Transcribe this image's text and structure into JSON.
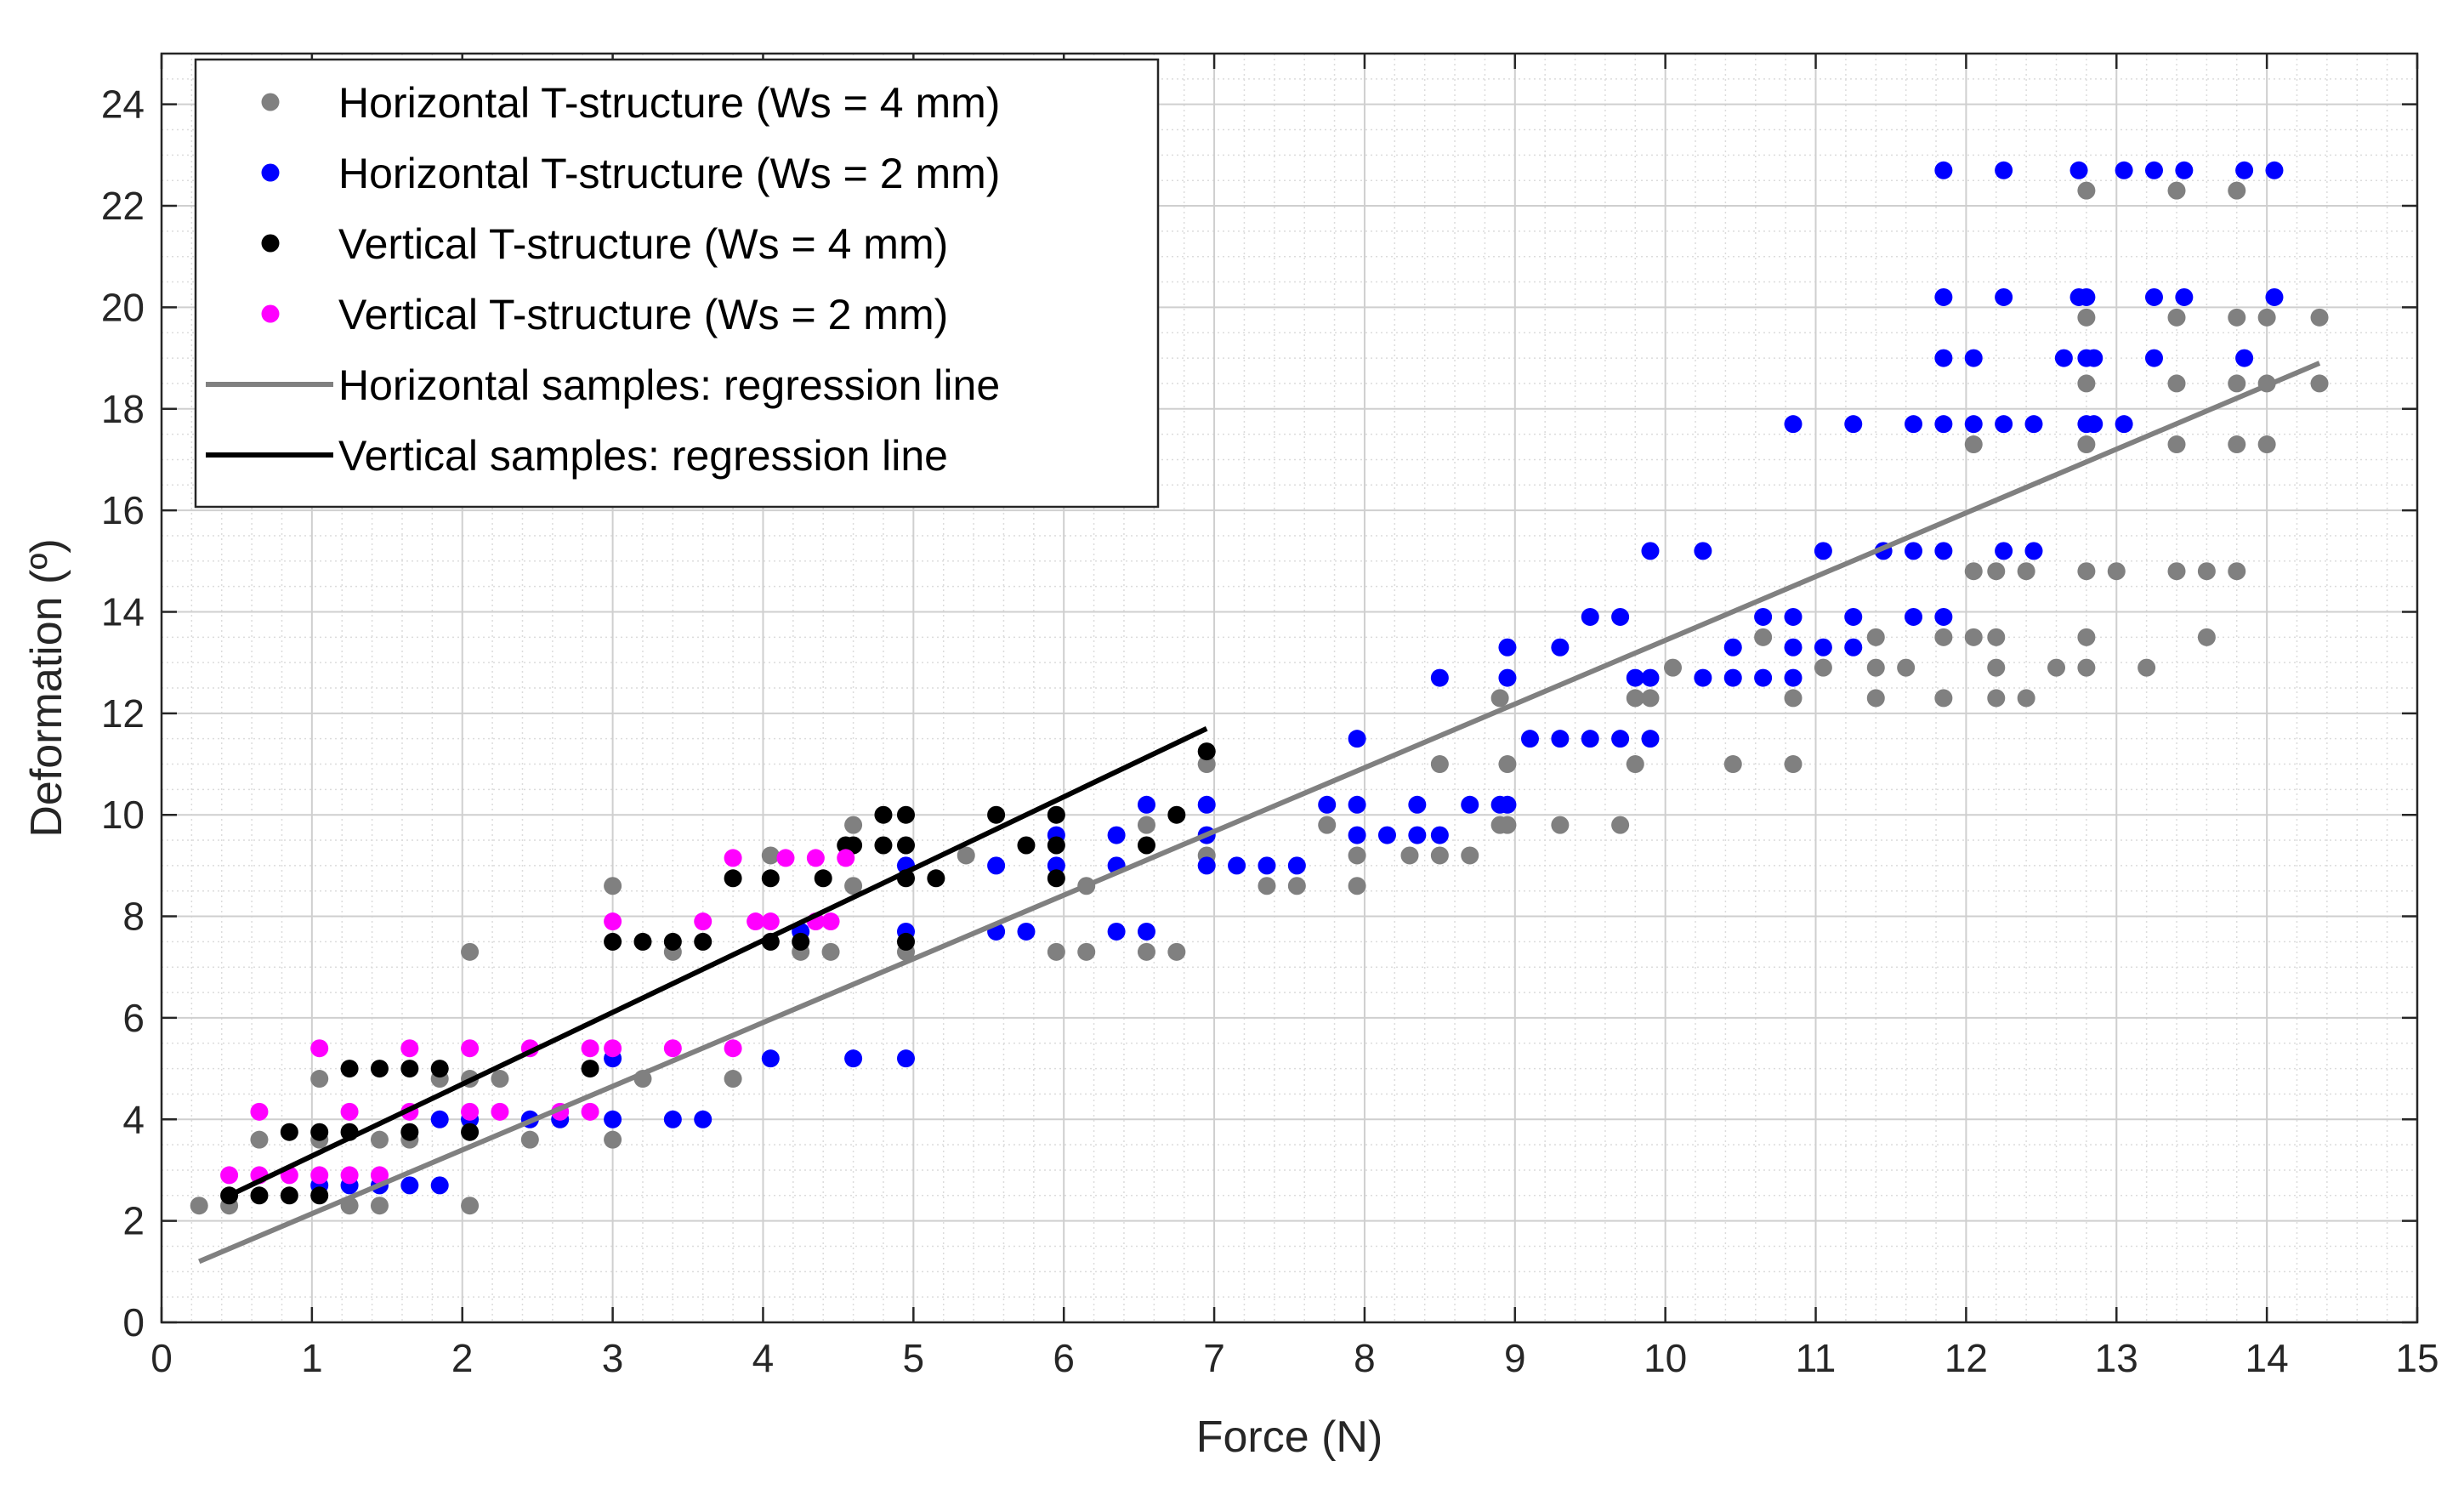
{
  "chart_data": {
    "type": "scatter",
    "title": "",
    "xlabel": "Force (N)",
    "ylabel": "Deformation (º)",
    "xlim": [
      0,
      15
    ],
    "ylim": [
      0,
      25
    ],
    "xticks": [
      0,
      1,
      2,
      3,
      4,
      5,
      6,
      7,
      8,
      9,
      10,
      11,
      12,
      13,
      14,
      15
    ],
    "yticks": [
      0,
      2,
      4,
      6,
      8,
      10,
      12,
      14,
      16,
      18,
      20,
      22,
      24
    ],
    "grid": true,
    "minor_grid": true,
    "legend_position": "top-left",
    "series": [
      {
        "name": "Horizontal T-structure (Ws = 4 mm)",
        "kind": "scatter",
        "color": "#808080",
        "points": [
          [
            0.25,
            2.3
          ],
          [
            0.45,
            2.3
          ],
          [
            0.65,
            3.6
          ],
          [
            1.05,
            4.8
          ],
          [
            1.05,
            3.6
          ],
          [
            1.25,
            2.3
          ],
          [
            1.45,
            2.3
          ],
          [
            1.45,
            3.6
          ],
          [
            1.65,
            3.6
          ],
          [
            1.85,
            4.8
          ],
          [
            2.05,
            7.3
          ],
          [
            2.05,
            4.8
          ],
          [
            2.05,
            2.3
          ],
          [
            2.25,
            4.8
          ],
          [
            2.45,
            3.6
          ],
          [
            3.0,
            8.6
          ],
          [
            3.0,
            3.6
          ],
          [
            3.2,
            4.8
          ],
          [
            3.4,
            7.3
          ],
          [
            3.8,
            4.8
          ],
          [
            4.05,
            9.2
          ],
          [
            4.25,
            7.3
          ],
          [
            4.45,
            7.3
          ],
          [
            4.6,
            9.8
          ],
          [
            4.6,
            8.6
          ],
          [
            4.95,
            7.3
          ],
          [
            5.35,
            9.2
          ],
          [
            5.95,
            7.3
          ],
          [
            6.15,
            8.6
          ],
          [
            6.15,
            7.3
          ],
          [
            6.55,
            9.8
          ],
          [
            6.55,
            7.3
          ],
          [
            6.75,
            7.3
          ],
          [
            6.95,
            11.0
          ],
          [
            6.95,
            9.2
          ],
          [
            7.35,
            8.6
          ],
          [
            7.55,
            8.6
          ],
          [
            7.75,
            9.8
          ],
          [
            7.95,
            9.2
          ],
          [
            7.95,
            8.6
          ],
          [
            8.3,
            9.2
          ],
          [
            8.5,
            11.0
          ],
          [
            8.5,
            9.2
          ],
          [
            8.7,
            9.2
          ],
          [
            8.9,
            12.3
          ],
          [
            8.9,
            9.8
          ],
          [
            8.95,
            11.0
          ],
          [
            8.95,
            9.8
          ],
          [
            9.3,
            9.8
          ],
          [
            9.7,
            9.8
          ],
          [
            9.8,
            12.3
          ],
          [
            9.8,
            11.0
          ],
          [
            9.9,
            12.3
          ],
          [
            10.05,
            12.9
          ],
          [
            10.45,
            11.0
          ],
          [
            10.65,
            13.5
          ],
          [
            10.85,
            12.3
          ],
          [
            10.85,
            11.0
          ],
          [
            11.05,
            12.9
          ],
          [
            11.4,
            13.5
          ],
          [
            11.4,
            12.9
          ],
          [
            11.4,
            12.3
          ],
          [
            11.6,
            12.9
          ],
          [
            11.85,
            13.5
          ],
          [
            11.85,
            12.3
          ],
          [
            12.05,
            17.3
          ],
          [
            12.05,
            14.8
          ],
          [
            12.05,
            13.5
          ],
          [
            12.2,
            14.8
          ],
          [
            12.2,
            13.5
          ],
          [
            12.2,
            12.9
          ],
          [
            12.2,
            12.3
          ],
          [
            12.4,
            14.8
          ],
          [
            12.4,
            12.3
          ],
          [
            12.6,
            12.9
          ],
          [
            12.8,
            22.3
          ],
          [
            12.8,
            19.8
          ],
          [
            12.8,
            18.5
          ],
          [
            12.8,
            17.3
          ],
          [
            12.8,
            14.8
          ],
          [
            12.8,
            13.5
          ],
          [
            12.8,
            12.9
          ],
          [
            13.0,
            14.8
          ],
          [
            13.2,
            12.9
          ],
          [
            13.4,
            22.3
          ],
          [
            13.4,
            19.8
          ],
          [
            13.4,
            18.5
          ],
          [
            13.4,
            17.3
          ],
          [
            13.4,
            14.8
          ],
          [
            13.6,
            14.8
          ],
          [
            13.6,
            13.5
          ],
          [
            13.8,
            22.3
          ],
          [
            13.8,
            19.8
          ],
          [
            13.8,
            18.5
          ],
          [
            13.8,
            17.3
          ],
          [
            13.8,
            14.8
          ],
          [
            14.0,
            19.8
          ],
          [
            14.0,
            18.5
          ],
          [
            14.0,
            17.3
          ],
          [
            14.35,
            19.8
          ],
          [
            14.35,
            18.5
          ]
        ]
      },
      {
        "name": "Horizontal T-structure (Ws = 2 mm)",
        "kind": "scatter",
        "color": "#0000ff",
        "points": [
          [
            1.05,
            2.7
          ],
          [
            1.25,
            2.7
          ],
          [
            1.45,
            2.7
          ],
          [
            1.65,
            2.7
          ],
          [
            1.85,
            2.7
          ],
          [
            1.85,
            4.0
          ],
          [
            2.05,
            4.0
          ],
          [
            2.45,
            4.0
          ],
          [
            2.65,
            4.0
          ],
          [
            3.0,
            5.2
          ],
          [
            3.0,
            4.0
          ],
          [
            3.4,
            4.0
          ],
          [
            3.6,
            4.0
          ],
          [
            4.05,
            5.2
          ],
          [
            4.25,
            7.7
          ],
          [
            4.6,
            5.2
          ],
          [
            4.95,
            9.0
          ],
          [
            4.95,
            7.7
          ],
          [
            4.95,
            5.2
          ],
          [
            5.55,
            9.0
          ],
          [
            5.55,
            7.7
          ],
          [
            5.75,
            7.7
          ],
          [
            5.95,
            9.6
          ],
          [
            5.95,
            9.0
          ],
          [
            6.35,
            9.6
          ],
          [
            6.35,
            9.0
          ],
          [
            6.35,
            7.7
          ],
          [
            6.55,
            10.2
          ],
          [
            6.55,
            7.7
          ],
          [
            6.95,
            10.2
          ],
          [
            6.95,
            9.6
          ],
          [
            6.95,
            9.0
          ],
          [
            7.15,
            9.0
          ],
          [
            7.35,
            9.0
          ],
          [
            7.55,
            9.0
          ],
          [
            7.75,
            10.2
          ],
          [
            7.95,
            11.5
          ],
          [
            7.95,
            10.2
          ],
          [
            7.95,
            9.6
          ],
          [
            8.15,
            9.6
          ],
          [
            8.35,
            10.2
          ],
          [
            8.35,
            9.6
          ],
          [
            8.5,
            12.7
          ],
          [
            8.5,
            9.6
          ],
          [
            8.7,
            10.2
          ],
          [
            8.9,
            10.2
          ],
          [
            8.95,
            13.3
          ],
          [
            8.95,
            12.7
          ],
          [
            8.95,
            10.2
          ],
          [
            9.1,
            11.5
          ],
          [
            9.3,
            13.3
          ],
          [
            9.3,
            11.5
          ],
          [
            9.5,
            13.9
          ],
          [
            9.5,
            11.5
          ],
          [
            9.7,
            13.9
          ],
          [
            9.7,
            11.5
          ],
          [
            9.8,
            12.7
          ],
          [
            9.9,
            15.2
          ],
          [
            9.9,
            12.7
          ],
          [
            9.9,
            11.5
          ],
          [
            10.25,
            15.2
          ],
          [
            10.25,
            12.7
          ],
          [
            10.45,
            13.3
          ],
          [
            10.45,
            12.7
          ],
          [
            10.65,
            13.9
          ],
          [
            10.65,
            12.7
          ],
          [
            10.85,
            17.7
          ],
          [
            10.85,
            13.9
          ],
          [
            10.85,
            13.3
          ],
          [
            10.85,
            12.7
          ],
          [
            11.05,
            15.2
          ],
          [
            11.05,
            13.3
          ],
          [
            11.25,
            17.7
          ],
          [
            11.25,
            13.9
          ],
          [
            11.25,
            13.3
          ],
          [
            11.45,
            15.2
          ],
          [
            11.65,
            17.7
          ],
          [
            11.65,
            15.2
          ],
          [
            11.65,
            13.9
          ],
          [
            11.85,
            22.7
          ],
          [
            11.85,
            20.2
          ],
          [
            11.85,
            19.0
          ],
          [
            11.85,
            17.7
          ],
          [
            11.85,
            15.2
          ],
          [
            11.85,
            13.9
          ],
          [
            12.05,
            19.0
          ],
          [
            12.05,
            17.7
          ],
          [
            12.25,
            22.7
          ],
          [
            12.25,
            20.2
          ],
          [
            12.25,
            17.7
          ],
          [
            12.25,
            15.2
          ],
          [
            12.45,
            17.7
          ],
          [
            12.45,
            15.2
          ],
          [
            12.65,
            19.0
          ],
          [
            12.75,
            22.7
          ],
          [
            12.75,
            20.2
          ],
          [
            12.8,
            20.2
          ],
          [
            12.8,
            19.0
          ],
          [
            12.8,
            17.7
          ],
          [
            12.85,
            19.0
          ],
          [
            12.85,
            17.7
          ],
          [
            13.05,
            22.7
          ],
          [
            13.05,
            17.7
          ],
          [
            13.25,
            22.7
          ],
          [
            13.25,
            20.2
          ],
          [
            13.25,
            19.0
          ],
          [
            13.45,
            22.7
          ],
          [
            13.45,
            20.2
          ],
          [
            13.85,
            22.7
          ],
          [
            13.85,
            19.0
          ],
          [
            14.05,
            22.7
          ],
          [
            14.05,
            20.2
          ]
        ]
      },
      {
        "name": "Vertical T-structure (Ws = 4 mm)",
        "kind": "scatter",
        "color": "#000000",
        "points": [
          [
            0.45,
            2.5
          ],
          [
            0.65,
            2.5
          ],
          [
            0.85,
            2.5
          ],
          [
            0.85,
            3.75
          ],
          [
            1.05,
            2.5
          ],
          [
            1.05,
            3.75
          ],
          [
            1.25,
            3.75
          ],
          [
            1.25,
            5.0
          ],
          [
            1.45,
            5.0
          ],
          [
            1.65,
            3.75
          ],
          [
            1.65,
            5.0
          ],
          [
            1.85,
            5.0
          ],
          [
            2.05,
            3.75
          ],
          [
            2.85,
            5.0
          ],
          [
            3.0,
            7.5
          ],
          [
            3.2,
            7.5
          ],
          [
            3.4,
            7.5
          ],
          [
            3.6,
            7.5
          ],
          [
            3.8,
            8.75
          ],
          [
            4.05,
            8.75
          ],
          [
            4.05,
            7.5
          ],
          [
            4.25,
            7.5
          ],
          [
            4.4,
            8.75
          ],
          [
            4.55,
            9.4
          ],
          [
            4.6,
            9.4
          ],
          [
            4.8,
            10.0
          ],
          [
            4.8,
            9.4
          ],
          [
            4.95,
            10.0
          ],
          [
            4.95,
            9.4
          ],
          [
            4.95,
            8.75
          ],
          [
            4.95,
            7.5
          ],
          [
            5.15,
            8.75
          ],
          [
            5.55,
            10.0
          ],
          [
            5.75,
            9.4
          ],
          [
            5.95,
            10.0
          ],
          [
            5.95,
            9.4
          ],
          [
            5.95,
            8.75
          ],
          [
            6.55,
            9.4
          ],
          [
            6.75,
            10.0
          ],
          [
            6.95,
            11.25
          ]
        ]
      },
      {
        "name": "Vertical T-structure (Ws = 2 mm)",
        "kind": "scatter",
        "color": "#ff00ff",
        "points": [
          [
            0.45,
            2.9
          ],
          [
            0.65,
            2.9
          ],
          [
            0.65,
            4.15
          ],
          [
            0.85,
            2.9
          ],
          [
            1.05,
            2.9
          ],
          [
            1.05,
            5.4
          ],
          [
            1.25,
            2.9
          ],
          [
            1.25,
            4.15
          ],
          [
            1.45,
            2.9
          ],
          [
            1.65,
            4.15
          ],
          [
            1.65,
            5.4
          ],
          [
            2.05,
            4.15
          ],
          [
            2.05,
            5.4
          ],
          [
            2.25,
            4.15
          ],
          [
            2.45,
            5.4
          ],
          [
            2.65,
            4.15
          ],
          [
            2.85,
            5.4
          ],
          [
            2.85,
            4.15
          ],
          [
            3.0,
            7.9
          ],
          [
            3.0,
            5.4
          ],
          [
            3.4,
            5.4
          ],
          [
            3.6,
            7.9
          ],
          [
            3.8,
            9.15
          ],
          [
            3.8,
            5.4
          ],
          [
            3.95,
            7.9
          ],
          [
            4.05,
            7.9
          ],
          [
            4.15,
            9.15
          ],
          [
            4.35,
            9.15
          ],
          [
            4.35,
            7.9
          ],
          [
            4.45,
            7.9
          ],
          [
            4.55,
            9.15
          ]
        ]
      },
      {
        "name": "Horizontal samples: regression line",
        "kind": "line",
        "color": "#808080",
        "x": [
          0.25,
          14.35
        ],
        "y": [
          1.2,
          18.9
        ]
      },
      {
        "name": "Vertical samples: regression line",
        "kind": "line",
        "color": "#000000",
        "x": [
          0.45,
          6.95
        ],
        "y": [
          2.5,
          11.7
        ]
      }
    ]
  }
}
